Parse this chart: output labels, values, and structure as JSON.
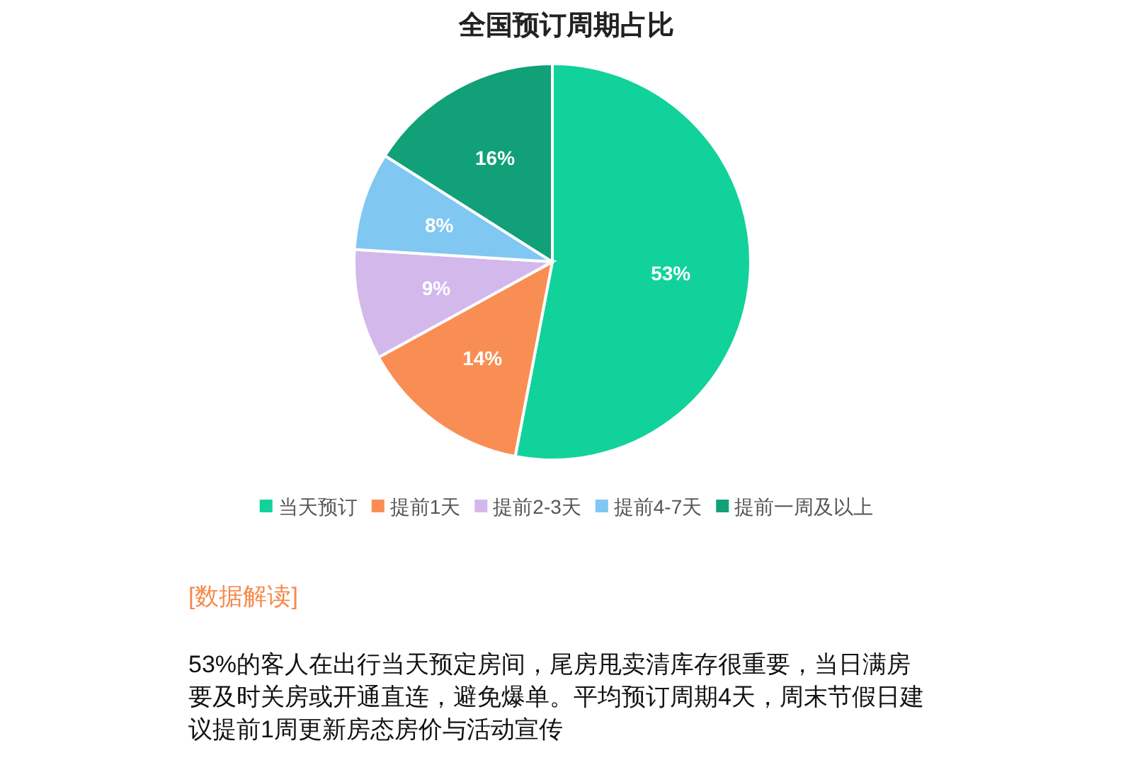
{
  "chart_data": {
    "type": "pie",
    "title": "全国预订周期占比",
    "categories": [
      "当天预订",
      "提前1天",
      "提前2-3天",
      "提前4-7天",
      "提前一周及以上"
    ],
    "values": [
      53,
      14,
      9,
      8,
      16
    ],
    "colors": [
      "#12d29b",
      "#f98e54",
      "#d3b8ec",
      "#80c7f2",
      "#11a077"
    ],
    "value_labels": [
      "53%",
      "14%",
      "9%",
      "8%",
      "16%"
    ],
    "legend": "bottom",
    "annotations": [
      "[数据解读]",
      "53%的客人在出行当天预定房间，尾房甩卖清库存很重要，当日满房要及时关房或开通直连，避免爆单。平均预订周期4天，周末节假日建议提前1周更新房态房价与活动宣传"
    ]
  }
}
